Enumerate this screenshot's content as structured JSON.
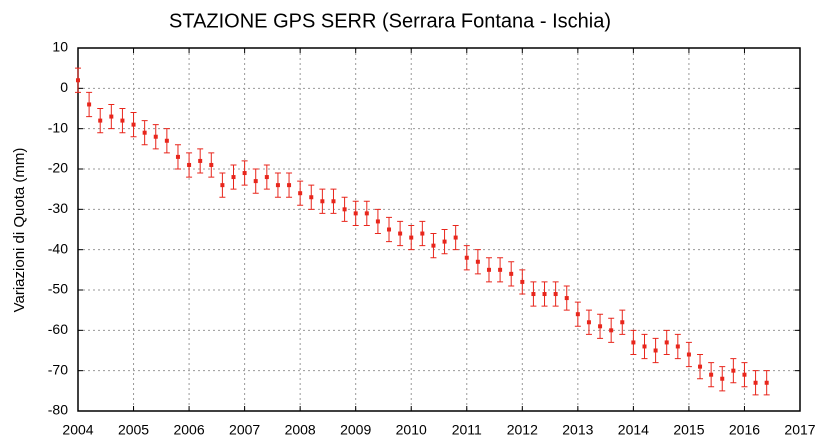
{
  "chart_data": {
    "type": "scatter",
    "title": "STAZIONE GPS SERR (Serrara Fontana - Ischia)",
    "y_label": "Variazioni di Quota (mm)",
    "color": "#e8261c",
    "x": [
      2004.0,
      2004.2,
      2004.4,
      2004.6,
      2004.8,
      2005.0,
      2005.2,
      2005.4,
      2005.6,
      2005.8,
      2006.0,
      2006.2,
      2006.4,
      2006.6,
      2006.8,
      2007.0,
      2007.2,
      2007.4,
      2007.6,
      2007.8,
      2008.0,
      2008.2,
      2008.4,
      2008.6,
      2008.8,
      2009.0,
      2009.2,
      2009.4,
      2009.6,
      2009.8,
      2010.0,
      2010.2,
      2010.4,
      2010.6,
      2010.8,
      2011.0,
      2011.2,
      2011.4,
      2011.6,
      2011.8,
      2012.0,
      2012.2,
      2012.4,
      2012.6,
      2012.8,
      2013.0,
      2013.2,
      2013.4,
      2013.6,
      2013.8,
      2014.0,
      2014.2,
      2014.4,
      2014.6,
      2014.8,
      2015.0,
      2015.2,
      2015.4,
      2015.6,
      2015.8,
      2016.0,
      2016.2,
      2016.4
    ],
    "y": [
      2,
      -4,
      -8,
      -7,
      -8,
      -9,
      -11,
      -12,
      -13,
      -17,
      -19,
      -18,
      -19,
      -24,
      -22,
      -21,
      -23,
      -22,
      -24,
      -24,
      -26,
      -27,
      -28,
      -28,
      -30,
      -31,
      -31,
      -33,
      -35,
      -36,
      -37,
      -36,
      -39,
      -38,
      -37,
      -42,
      -43,
      -45,
      -45,
      -46,
      -48,
      -51,
      -51,
      -51,
      -52,
      -56,
      -58,
      -59,
      -60,
      -58,
      -63,
      -64,
      -65,
      -63,
      -64,
      -66,
      -69,
      -71,
      -72,
      -70,
      -71,
      -73,
      -73
    ],
    "error": 3,
    "xlim": [
      2004,
      2017
    ],
    "xticks": [
      2004,
      2005,
      2006,
      2007,
      2008,
      2009,
      2010,
      2011,
      2012,
      2013,
      2014,
      2015,
      2016,
      2017
    ],
    "ylim": [
      -80,
      10
    ],
    "yticks": [
      -80,
      -70,
      -60,
      -50,
      -40,
      -30,
      -20,
      -10,
      0,
      10
    ],
    "grid": true
  }
}
